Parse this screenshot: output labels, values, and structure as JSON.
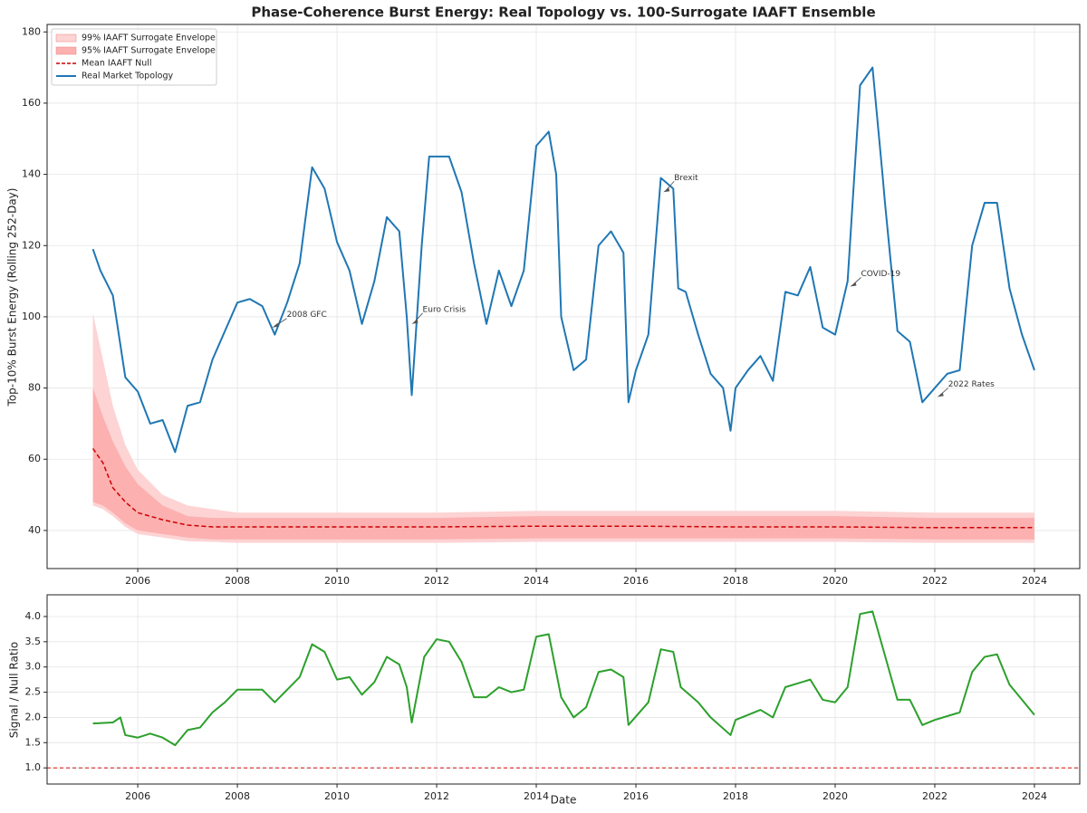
{
  "chart_data": [
    {
      "type": "line",
      "title": "Phase-Coherence Burst Energy: Real Topology vs. 100-Surrogate IAAFT Ensemble",
      "ylabel": "Top-10% Burst Energy (Rolling 252-Day)",
      "xlim": [
        2004.18,
        2024.91
      ],
      "xticks": [
        2006,
        2008,
        2010,
        2012,
        2014,
        2016,
        2018,
        2020,
        2022,
        2024
      ],
      "ylim": [
        29.3,
        182.1
      ],
      "yticks": [
        40,
        60,
        80,
        100,
        120,
        140,
        160,
        180
      ],
      "grid": true,
      "legend": "upper left",
      "series": [
        {
          "name": "99% IAAFT Surrogate Envelope",
          "kind": "band",
          "color": "#fdd3d3",
          "x": [
            2005.1,
            2005.3,
            2005.5,
            2005.75,
            2006,
            2006.5,
            2007,
            2007.5,
            2008,
            2010,
            2012,
            2014,
            2016,
            2018,
            2020,
            2022,
            2024
          ],
          "lower": [
            47,
            46,
            44,
            41,
            39,
            38,
            37,
            36.8,
            36.5,
            36.5,
            36.5,
            36.8,
            36.8,
            36.8,
            36.8,
            36.5,
            36.5
          ],
          "upper": [
            101,
            88,
            75,
            64,
            57,
            50,
            47,
            46,
            45,
            45,
            45,
            45.5,
            45.5,
            45.5,
            45.5,
            45,
            45
          ]
        },
        {
          "name": "95% IAAFT Surrogate Envelope",
          "kind": "band",
          "color": "#fcb0b0",
          "x": [
            2005.1,
            2005.3,
            2005.5,
            2005.75,
            2006,
            2006.5,
            2007,
            2007.5,
            2008,
            2010,
            2012,
            2014,
            2016,
            2018,
            2020,
            2022,
            2024
          ],
          "lower": [
            48,
            47,
            45,
            42,
            40,
            39,
            38,
            37.5,
            37.5,
            37.5,
            37.5,
            37.8,
            37.8,
            37.8,
            37.8,
            37.5,
            37.5
          ],
          "upper": [
            80,
            72,
            65,
            58,
            53,
            47,
            44,
            43.5,
            43.5,
            43.5,
            43.5,
            44,
            44,
            44,
            44,
            43.5,
            43.5
          ]
        },
        {
          "name": "Mean IAAFT Null",
          "kind": "line",
          "dashed": true,
          "color": "#cc0000",
          "x": [
            2005.1,
            2005.3,
            2005.5,
            2005.75,
            2006,
            2006.5,
            2007,
            2007.5,
            2008,
            2010,
            2012,
            2014,
            2016,
            2018,
            2020,
            2022,
            2024
          ],
          "values": [
            63,
            59,
            52,
            48,
            45,
            43,
            41.5,
            41,
            41,
            41,
            41,
            41.2,
            41.2,
            41,
            41,
            40.8,
            40.8
          ]
        },
        {
          "name": "Real Market Topology",
          "kind": "line",
          "color": "#1f77b4",
          "x": [
            2005.1,
            2005.25,
            2005.5,
            2005.75,
            2006,
            2006.25,
            2006.5,
            2006.75,
            2007,
            2007.25,
            2007.5,
            2007.75,
            2008,
            2008.25,
            2008.5,
            2008.75,
            2009,
            2009.25,
            2009.5,
            2009.75,
            2010,
            2010.25,
            2010.5,
            2010.75,
            2011,
            2011.25,
            2011.4,
            2011.5,
            2011.7,
            2011.85,
            2012.25,
            2012.5,
            2012.75,
            2013,
            2013.25,
            2013.5,
            2013.75,
            2014,
            2014.25,
            2014.4,
            2014.5,
            2014.75,
            2015,
            2015.25,
            2015.5,
            2015.75,
            2015.85,
            2016,
            2016.25,
            2016.5,
            2016.75,
            2016.85,
            2017,
            2017.25,
            2017.5,
            2017.75,
            2017.9,
            2018,
            2018.25,
            2018.5,
            2018.75,
            2019,
            2019.25,
            2019.5,
            2019.75,
            2020,
            2020.25,
            2020.5,
            2020.75,
            2020.95,
            2021,
            2021.25,
            2021.5,
            2021.75,
            2022,
            2022.25,
            2022.5,
            2022.75,
            2023,
            2023.25,
            2023.5,
            2023.75,
            2024
          ],
          "values": [
            119,
            113,
            106,
            83,
            79,
            70,
            71,
            62,
            75,
            76,
            88,
            96,
            104,
            105,
            103,
            95,
            104,
            115,
            142,
            136,
            121,
            113,
            98,
            110,
            128,
            124,
            100,
            78,
            120,
            145,
            145,
            135,
            115,
            98,
            113,
            103,
            113,
            148,
            152,
            140,
            100,
            85,
            88,
            120,
            124,
            118,
            76,
            85,
            95,
            139,
            136,
            108,
            107,
            95,
            84,
            80,
            68,
            80,
            85,
            89,
            82,
            107,
            106,
            114,
            97,
            95,
            110,
            165,
            170,
            140,
            132,
            96,
            93,
            76,
            80,
            84,
            85,
            120,
            132,
            132,
            108,
            95,
            85
          ]
        }
      ],
      "annotations": [
        {
          "text": "2008 GFC",
          "x": 2008.7,
          "y": 97
        },
        {
          "text": "Euro Crisis",
          "x": 2011.5,
          "y": 98
        },
        {
          "text": "Brexit",
          "x": 2016.55,
          "y": 135
        },
        {
          "text": "COVID-19",
          "x": 2020.3,
          "y": 108.5
        },
        {
          "text": "2022 Rates",
          "x": 2022.05,
          "y": 77.5
        }
      ]
    },
    {
      "type": "line",
      "xlabel": "Date",
      "ylabel": "Signal / Null Ratio",
      "xlim": [
        2004.18,
        2024.91
      ],
      "xticks": [
        2006,
        2008,
        2010,
        2012,
        2014,
        2016,
        2018,
        2020,
        2022,
        2024
      ],
      "ylim": [
        0.68,
        4.43
      ],
      "yticks": [
        {
          "value": 1,
          "label": "1.0"
        },
        1.5,
        {
          "value": 2,
          "label": "2.0"
        },
        2.5,
        {
          "value": 3,
          "label": "3.0"
        },
        3.5,
        {
          "value": 4,
          "label": "4.0"
        }
      ],
      "grid": true,
      "reference_line": {
        "value": 1,
        "color": "#d62728"
      },
      "series": [
        {
          "kind": "line",
          "color": "#2ca02c",
          "x": [
            2005.1,
            2005.5,
            2005.65,
            2005.75,
            2006,
            2006.25,
            2006.5,
            2006.75,
            2007,
            2007.25,
            2007.5,
            2007.75,
            2008,
            2008.5,
            2008.75,
            2009,
            2009.25,
            2009.5,
            2009.75,
            2010,
            2010.25,
            2010.5,
            2010.75,
            2011,
            2011.25,
            2011.4,
            2011.5,
            2011.75,
            2012,
            2012.25,
            2012.5,
            2012.75,
            2013,
            2013.25,
            2013.5,
            2013.75,
            2014,
            2014.25,
            2014.5,
            2014.75,
            2015,
            2015.25,
            2015.5,
            2015.75,
            2015.85,
            2016.25,
            2016.5,
            2016.75,
            2016.9,
            2017.25,
            2017.5,
            2017.9,
            2018,
            2018.25,
            2018.5,
            2018.75,
            2019,
            2019.5,
            2019.75,
            2020,
            2020.25,
            2020.5,
            2020.75,
            2020.95,
            2021.25,
            2021.5,
            2021.75,
            2022,
            2022.5,
            2022.75,
            2023,
            2023.25,
            2023.5,
            2023.75,
            2024
          ],
          "values": [
            1.88,
            1.9,
            2.0,
            1.65,
            1.6,
            1.68,
            1.6,
            1.45,
            1.75,
            1.8,
            2.1,
            2.3,
            2.55,
            2.55,
            2.3,
            2.55,
            2.8,
            3.45,
            3.3,
            2.75,
            2.8,
            2.45,
            2.7,
            3.2,
            3.05,
            2.6,
            1.9,
            3.2,
            3.55,
            3.5,
            3.1,
            2.4,
            2.4,
            2.6,
            2.5,
            2.55,
            3.6,
            3.65,
            2.4,
            2.0,
            2.2,
            2.9,
            2.95,
            2.8,
            1.85,
            2.3,
            3.35,
            3.3,
            2.6,
            2.3,
            2.0,
            1.65,
            1.95,
            2.05,
            2.15,
            2.0,
            2.6,
            2.75,
            2.35,
            2.3,
            2.6,
            4.05,
            4.1,
            3.4,
            2.35,
            2.35,
            1.85,
            1.95,
            2.1,
            2.9,
            3.2,
            3.25,
            2.65,
            2.35,
            2.05
          ]
        }
      ]
    }
  ]
}
